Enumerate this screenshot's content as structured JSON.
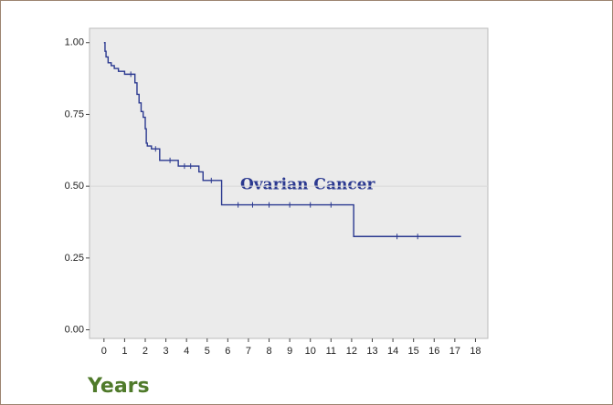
{
  "chart_data": {
    "type": "line",
    "step": "post",
    "annotation": "Ovarian Cancer",
    "xlabel": "Years",
    "xlim": [
      -0.7,
      18.6
    ],
    "ylim": [
      -0.03,
      1.05
    ],
    "xticks": [
      0,
      1,
      2,
      3,
      4,
      5,
      6,
      7,
      8,
      9,
      10,
      11,
      12,
      13,
      14,
      15,
      16,
      17,
      18
    ],
    "yticks": [
      {
        "value": 0,
        "label": "0.00"
      },
      {
        "value": 0.25,
        "label": "0.25"
      },
      {
        "value": 0.5,
        "label": "0.50"
      },
      {
        "value": 0.75,
        "label": "0.75"
      },
      {
        "value": 1,
        "label": "1.00"
      }
    ],
    "reference_line": 0.5,
    "series": [
      {
        "color": "#2b3990",
        "x": [
          0,
          0.05,
          0.1,
          0.2,
          0.35,
          0.5,
          0.7,
          1.0,
          1.5,
          1.6,
          1.7,
          1.8,
          1.9,
          2.0,
          2.05,
          2.1,
          2.3,
          2.7,
          3.6,
          4.6,
          4.8,
          5.7,
          12.1,
          17.3
        ],
        "values": [
          1.0,
          0.97,
          0.95,
          0.93,
          0.92,
          0.91,
          0.9,
          0.89,
          0.86,
          0.82,
          0.79,
          0.76,
          0.74,
          0.7,
          0.65,
          0.64,
          0.63,
          0.59,
          0.57,
          0.55,
          0.52,
          0.435,
          0.325,
          0.325
        ],
        "censor_x": [
          1.3,
          2.5,
          3.2,
          3.9,
          4.2,
          5.2,
          6.5,
          7.2,
          8.0,
          9.0,
          10.0,
          11.0,
          14.2,
          15.2
        ],
        "censor_values": [
          0.89,
          0.63,
          0.59,
          0.57,
          0.57,
          0.52,
          0.435,
          0.435,
          0.435,
          0.435,
          0.435,
          0.435,
          0.325,
          0.325
        ]
      }
    ]
  }
}
